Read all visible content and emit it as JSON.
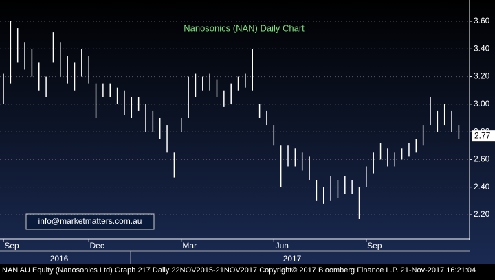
{
  "chart_data": {
    "type": "hilo",
    "title": "Nanosonics (NAN) Daily Chart",
    "categories": [
      "Sep",
      null,
      null,
      null,
      null,
      null,
      null,
      null,
      null,
      null,
      null,
      null,
      "Dec",
      null,
      null,
      null,
      null,
      null,
      null,
      null,
      null,
      null,
      null,
      null,
      null,
      "Mar",
      null,
      null,
      null,
      null,
      null,
      null,
      null,
      null,
      null,
      null,
      null,
      null,
      "Jun",
      null,
      null,
      null,
      null,
      null,
      null,
      null,
      null,
      null,
      null,
      null,
      null,
      "Sep",
      null,
      null,
      null,
      null,
      null,
      null,
      null,
      null,
      null,
      null,
      null,
      null,
      null
    ],
    "years": [
      "2016",
      "2017"
    ],
    "series": [
      {
        "color": "#ffffff",
        "high": [
          3.22,
          3.6,
          3.55,
          3.45,
          3.4,
          3.3,
          3.2,
          3.52,
          3.45,
          3.35,
          3.3,
          3.4,
          3.35,
          3.15,
          3.15,
          3.15,
          3.12,
          3.1,
          3.05,
          3.05,
          3.0,
          2.95,
          2.9,
          2.85,
          2.65,
          2.9,
          3.2,
          3.22,
          3.2,
          3.22,
          3.18,
          3.1,
          3.15,
          3.2,
          3.22,
          3.4,
          3.0,
          2.95,
          2.85,
          2.7,
          2.7,
          2.68,
          2.65,
          2.62,
          2.45,
          2.4,
          2.48,
          2.45,
          2.48,
          2.45,
          2.4,
          2.55,
          2.65,
          2.72,
          2.68,
          2.65,
          2.68,
          2.72,
          2.75,
          2.85,
          3.05,
          2.95,
          3.0,
          2.95,
          2.85
        ],
        "low": [
          3.0,
          3.15,
          3.3,
          3.25,
          3.2,
          3.1,
          3.05,
          3.3,
          3.2,
          3.15,
          3.1,
          3.2,
          3.15,
          2.9,
          3.05,
          3.05,
          3.0,
          2.92,
          2.9,
          2.95,
          2.8,
          2.8,
          2.75,
          2.65,
          2.47,
          2.8,
          2.9,
          3.05,
          3.1,
          3.1,
          3.05,
          2.98,
          3.0,
          3.1,
          3.12,
          3.1,
          2.9,
          2.85,
          2.7,
          2.4,
          2.55,
          2.55,
          2.52,
          2.45,
          2.3,
          2.28,
          2.3,
          2.32,
          2.35,
          2.35,
          2.17,
          2.4,
          2.5,
          2.6,
          2.55,
          2.55,
          2.6,
          2.62,
          2.65,
          2.7,
          2.85,
          2.8,
          2.85,
          2.8,
          2.75
        ]
      }
    ],
    "last_value": {
      "value": 2.77,
      "label": "2.77"
    },
    "ylim": [
      2.026,
      3.754
    ],
    "yticks": [
      {
        "value": 2.2,
        "label": "2.20"
      },
      {
        "value": 2.4,
        "label": "2.40"
      },
      {
        "value": 2.6,
        "label": "2.60"
      },
      {
        "value": 2.8,
        "label": "2.80"
      },
      {
        "value": 3.0,
        "label": "3.00"
      },
      {
        "value": 3.2,
        "label": "3.20"
      },
      {
        "value": 3.4,
        "label": "3.40"
      },
      {
        "value": 3.6,
        "label": "3.60"
      }
    ],
    "grid": true,
    "watermark": "info@marketmatters.com.au",
    "footer": "NAN AU Equity (Nanosonics Ltd) Graph 217  Daily 22NOV2015-21NOV2017  Copyright© 2017 Bloomberg Finance L.P.  21-Nov-2017 16:21:04"
  }
}
